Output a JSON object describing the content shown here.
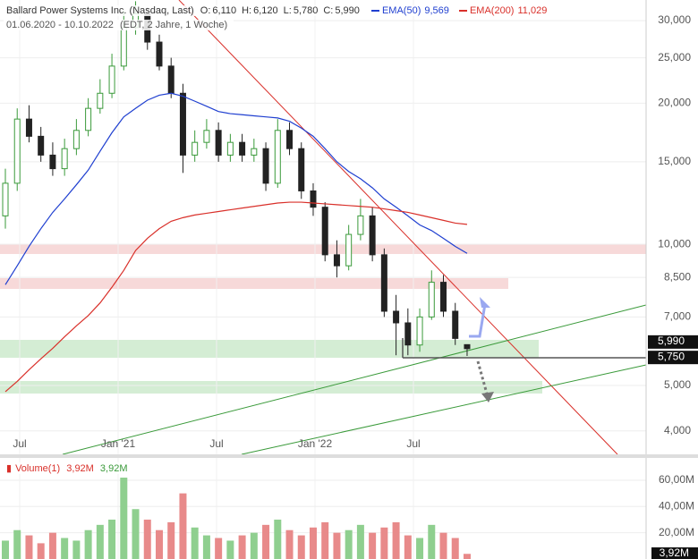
{
  "chart_data": {
    "type": "candlestick",
    "title": "Ballard Power Systems Inc. (Nasdaq, Last)",
    "quote": [
      {
        "label": "O:",
        "value": "6,110"
      },
      {
        "label": "H:",
        "value": "6,120"
      },
      {
        "label": "L:",
        "value": "5,780"
      },
      {
        "label": "C:",
        "value": "5,990"
      }
    ],
    "subtitle": "01.06.2020 - 10.10.2022",
    "subtitle_note": "(EDT, 2 Jahre, 1 Woche)",
    "x_labels": [
      "Jul",
      "Jan '21",
      "Jul",
      "Jan '22",
      "Jul"
    ],
    "open": [
      11500,
      13500,
      18500,
      17000,
      15500,
      14500,
      16000,
      17500,
      19500,
      21000,
      24000,
      29000,
      31000,
      27000,
      24000,
      21000,
      15500,
      16500,
      17500,
      15500,
      16500,
      15500,
      16000,
      13500,
      17500,
      16000,
      13000,
      12000,
      9500,
      9000,
      10500,
      11500,
      9500,
      7200,
      6800,
      6100,
      7000,
      8300,
      7200,
      6110
    ],
    "high": [
      14500,
      19500,
      19800,
      17800,
      16500,
      16800,
      18500,
      20500,
      22500,
      25500,
      31500,
      33000,
      32000,
      28000,
      25000,
      22000,
      17500,
      18500,
      18200,
      17200,
      17200,
      16800,
      16500,
      18500,
      18200,
      16500,
      13500,
      12300,
      10200,
      11000,
      12500,
      12000,
      9800,
      7800,
      7300,
      7300,
      8800,
      8600,
      7500,
      6120
    ],
    "low": [
      10800,
      13000,
      16500,
      15000,
      14000,
      14000,
      15500,
      17000,
      19000,
      20500,
      23500,
      28000,
      26000,
      23500,
      20500,
      14200,
      15000,
      16000,
      15000,
      15000,
      15000,
      15000,
      13000,
      13200,
      15500,
      12500,
      11500,
      9200,
      8500,
      8800,
      10200,
      9200,
      7000,
      5800,
      5800,
      5900,
      6900,
      7000,
      6100,
      5780
    ],
    "close": [
      13500,
      18500,
      17000,
      15500,
      14500,
      16000,
      17500,
      19500,
      21000,
      24000,
      29000,
      31000,
      27000,
      24000,
      21000,
      15500,
      16500,
      17500,
      15500,
      16500,
      15500,
      16000,
      13500,
      17500,
      16000,
      13000,
      12000,
      9500,
      9000,
      10500,
      11500,
      9500,
      7200,
      6800,
      6100,
      7000,
      8300,
      7200,
      6300,
      5990
    ],
    "up_color": "#3a9a3a",
    "down_color": "#222222",
    "series": [
      {
        "name": "EMA(50)",
        "value_label": "9,569",
        "color": "#1f3fd0",
        "values": [
          8200,
          9000,
          9900,
          10800,
          11700,
          12500,
          13400,
          14400,
          15800,
          17300,
          18700,
          19500,
          20300,
          20800,
          21000,
          20700,
          20200,
          19700,
          19200,
          19000,
          18900,
          18800,
          18700,
          18600,
          18300,
          17700,
          17000,
          16000,
          15000,
          14300,
          13800,
          13200,
          12500,
          12000,
          11500,
          11000,
          10700,
          10300,
          9900,
          9569
        ]
      },
      {
        "name": "EMA(200)",
        "value_label": "11,029",
        "color": "#d9302a",
        "values": [
          4850,
          5100,
          5400,
          5700,
          6000,
          6350,
          6700,
          7050,
          7500,
          8100,
          8800,
          9700,
          10300,
          10800,
          11200,
          11400,
          11550,
          11650,
          11750,
          11850,
          11950,
          12050,
          12150,
          12250,
          12300,
          12300,
          12250,
          12200,
          12150,
          12100,
          12050,
          12000,
          11900,
          11800,
          11700,
          11550,
          11400,
          11250,
          11100,
          11029
        ]
      }
    ],
    "log": true,
    "ylim": [
      3565,
      33200
    ],
    "yticks": [
      {
        "value": 4000,
        "label": "4,000"
      },
      {
        "value": 5000,
        "label": "5,000"
      },
      {
        "value": 7000,
        "label": "7,000"
      },
      {
        "value": 8500,
        "label": "8,500"
      },
      {
        "value": 10000,
        "label": "10,000"
      },
      {
        "value": 15000,
        "label": "15,000"
      },
      {
        "value": 20000,
        "label": "20,000"
      },
      {
        "value": 25000,
        "label": "25,000"
      },
      {
        "value": 30000,
        "label": "30,000"
      }
    ],
    "price_labels": [
      {
        "value": 5990,
        "label": "5,990"
      },
      {
        "value": 5750,
        "label": "5,750"
      }
    ],
    "volume": {
      "name": "Volume(1)",
      "labels": [
        "3,92M",
        "3,92M"
      ],
      "values": [
        14,
        22,
        18,
        12,
        20,
        16,
        14,
        22,
        26,
        30,
        62,
        38,
        30,
        22,
        28,
        50,
        24,
        18,
        16,
        14,
        18,
        20,
        26,
        30,
        22,
        18,
        24,
        28,
        20,
        22,
        26,
        20,
        24,
        28,
        18,
        16,
        26,
        20,
        16,
        3.92
      ],
      "value_label": "3,92M",
      "ylim": [
        0,
        77
      ],
      "yticks": [
        {
          "value": 20,
          "label": "20,00M"
        },
        {
          "value": 40,
          "label": "40,00M"
        },
        {
          "value": 60,
          "label": "60,00M"
        }
      ]
    }
  }
}
